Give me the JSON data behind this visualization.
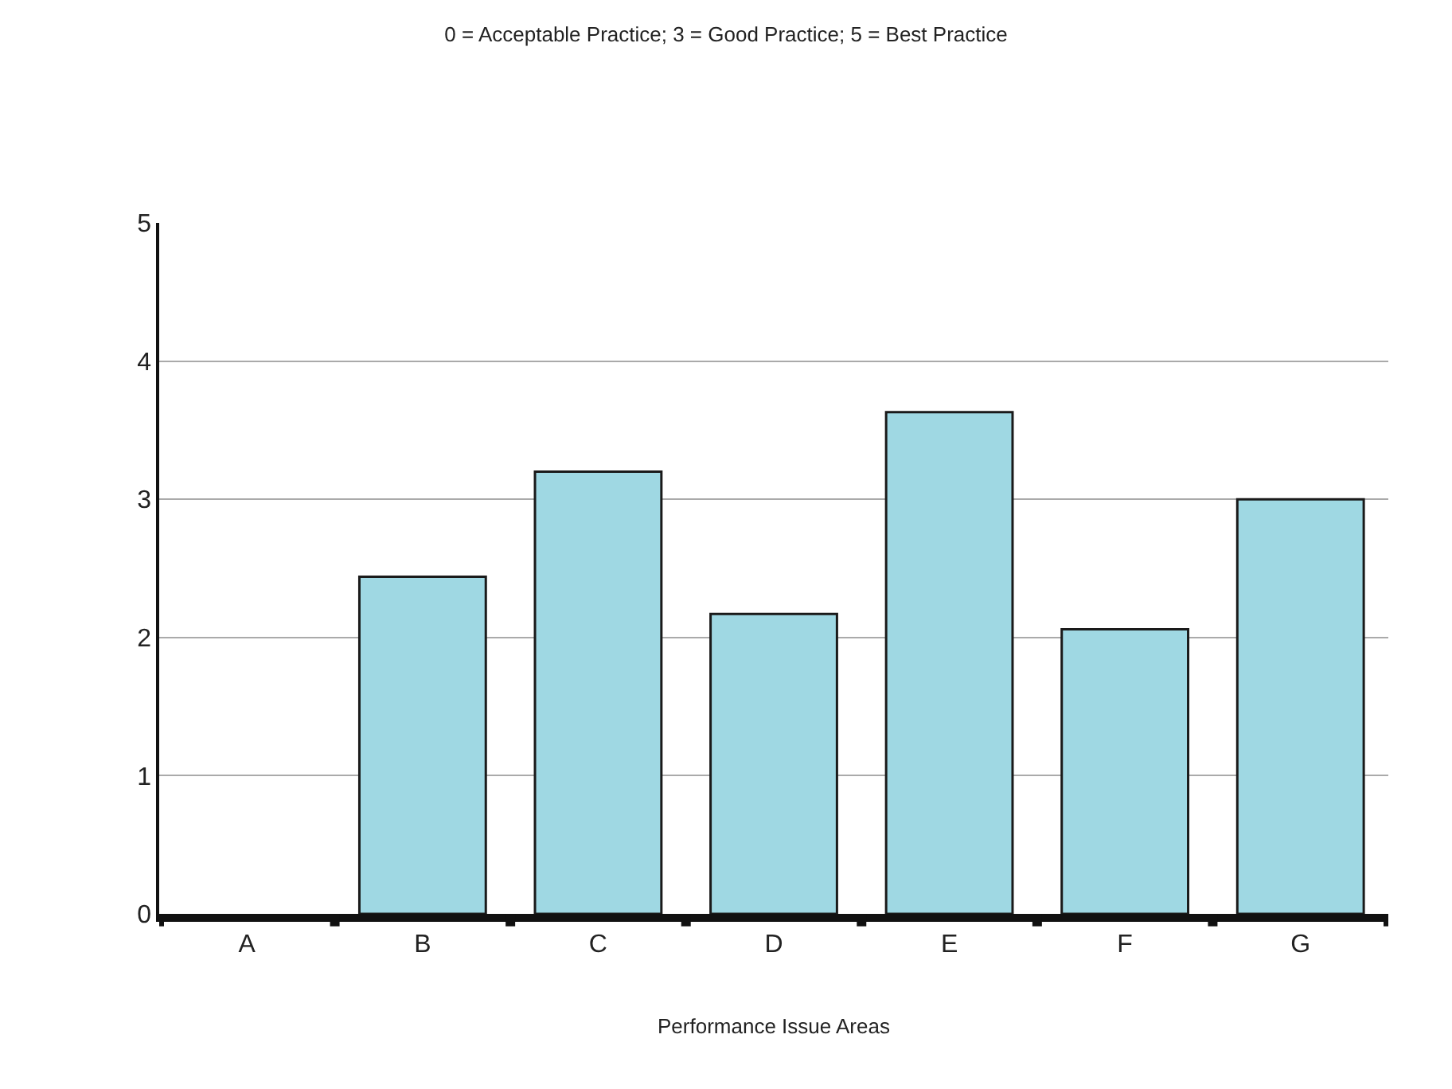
{
  "chart_data": {
    "type": "bar",
    "title": "0 = Acceptable Practice; 3 = Good Practice; 5 = Best Practice",
    "xlabel": "Performance Issue Areas",
    "categories": [
      "A",
      "B",
      "C",
      "D",
      "E",
      "F",
      "G"
    ],
    "values": [
      null,
      2.44,
      3.2,
      2.17,
      3.63,
      2.06,
      3.0
    ],
    "color": "#9fd8e3",
    "ylim": [
      0,
      5
    ],
    "yticks": [
      0,
      1,
      2,
      3,
      4,
      5
    ],
    "grid": "y",
    "legend": false
  }
}
